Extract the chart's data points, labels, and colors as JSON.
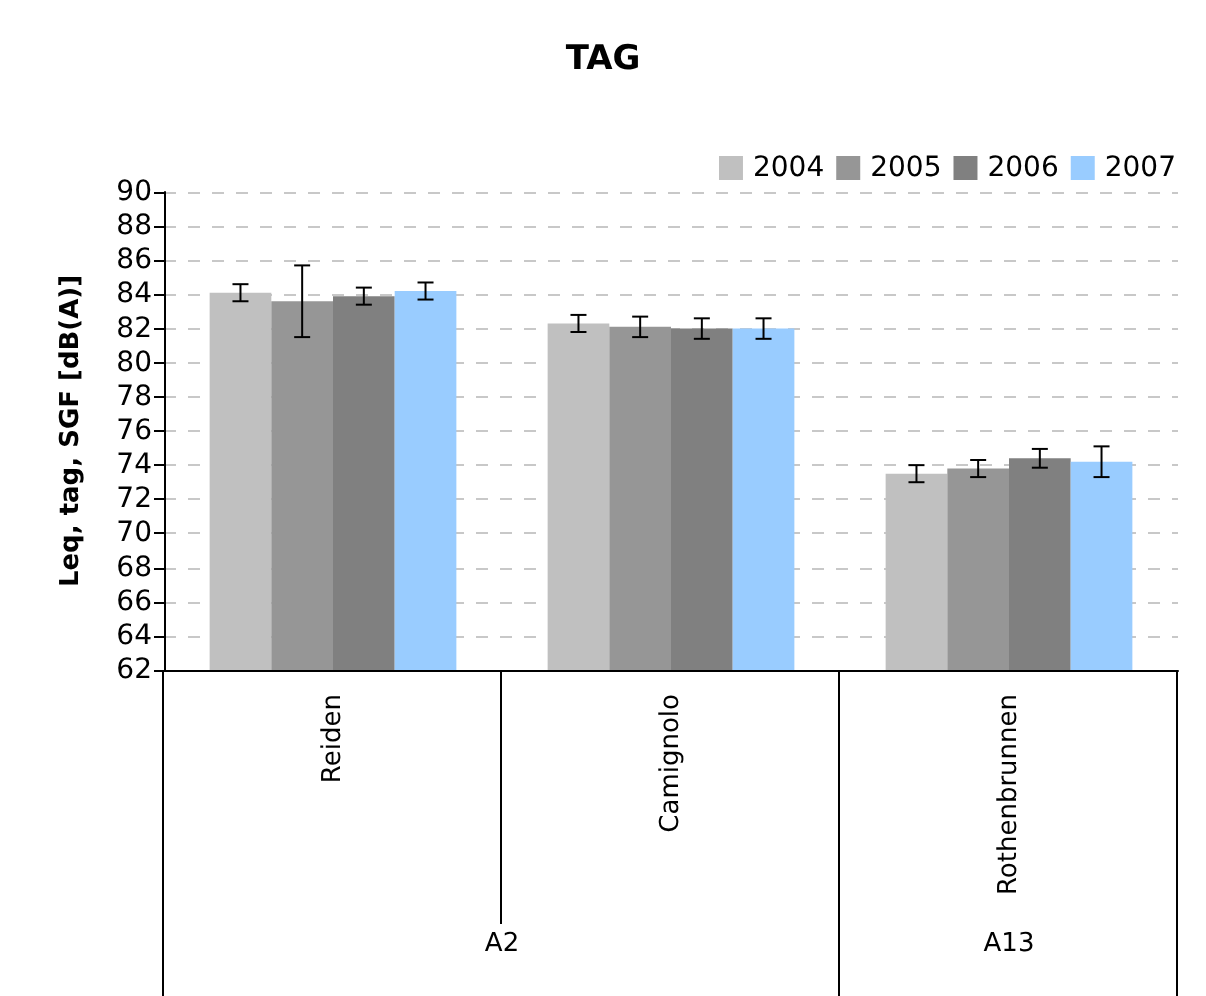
{
  "chart_data": {
    "type": "bar",
    "title": "TAG",
    "ylabel": "Leq, tag, SGF [dB(A)]",
    "categories": [
      "Reiden",
      "Camignolo",
      "Rothenbrunnen"
    ],
    "series": [
      {
        "name": "2004",
        "color": "#c0c0c0",
        "values": [
          84.1,
          82.3,
          73.5
        ],
        "errors": [
          0.5,
          0.5,
          0.5
        ]
      },
      {
        "name": "2005",
        "color": "#969696",
        "values": [
          83.6,
          82.1,
          73.8
        ],
        "errors": [
          2.1,
          0.6,
          0.5
        ]
      },
      {
        "name": "2006",
        "color": "#808080",
        "values": [
          83.9,
          82.0,
          74.4
        ],
        "errors": [
          0.5,
          0.6,
          0.55
        ]
      },
      {
        "name": "2007",
        "color": "#99ccff",
        "values": [
          84.2,
          82.0,
          74.2
        ],
        "errors": [
          0.5,
          0.6,
          0.9
        ]
      }
    ],
    "ylim": [
      62,
      90
    ],
    "yticks": [
      62,
      64,
      66,
      68,
      70,
      72,
      74,
      76,
      78,
      80,
      82,
      84,
      86,
      88,
      90
    ],
    "grid": "y",
    "legend": "top right",
    "annotations": [
      "A2",
      "A13"
    ]
  }
}
